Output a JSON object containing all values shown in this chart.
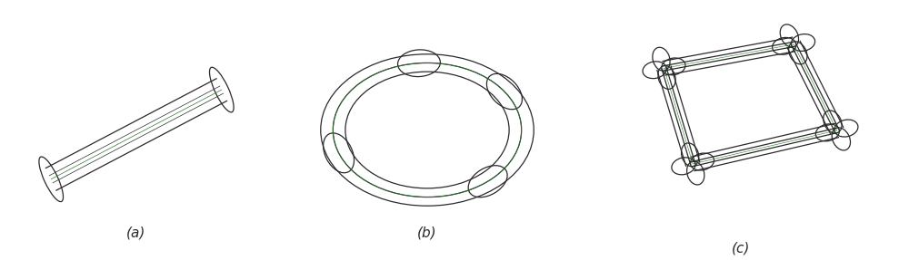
{
  "bg_color": "#ffffff",
  "line_color": "#2a2a2a",
  "green_line": "#2d7a2d",
  "label_a": "(a)",
  "label_b": "(b)",
  "label_c": "(c)",
  "label_fontsize": 11,
  "fig_width": 10.0,
  "fig_height": 2.87,
  "dpi": 100
}
